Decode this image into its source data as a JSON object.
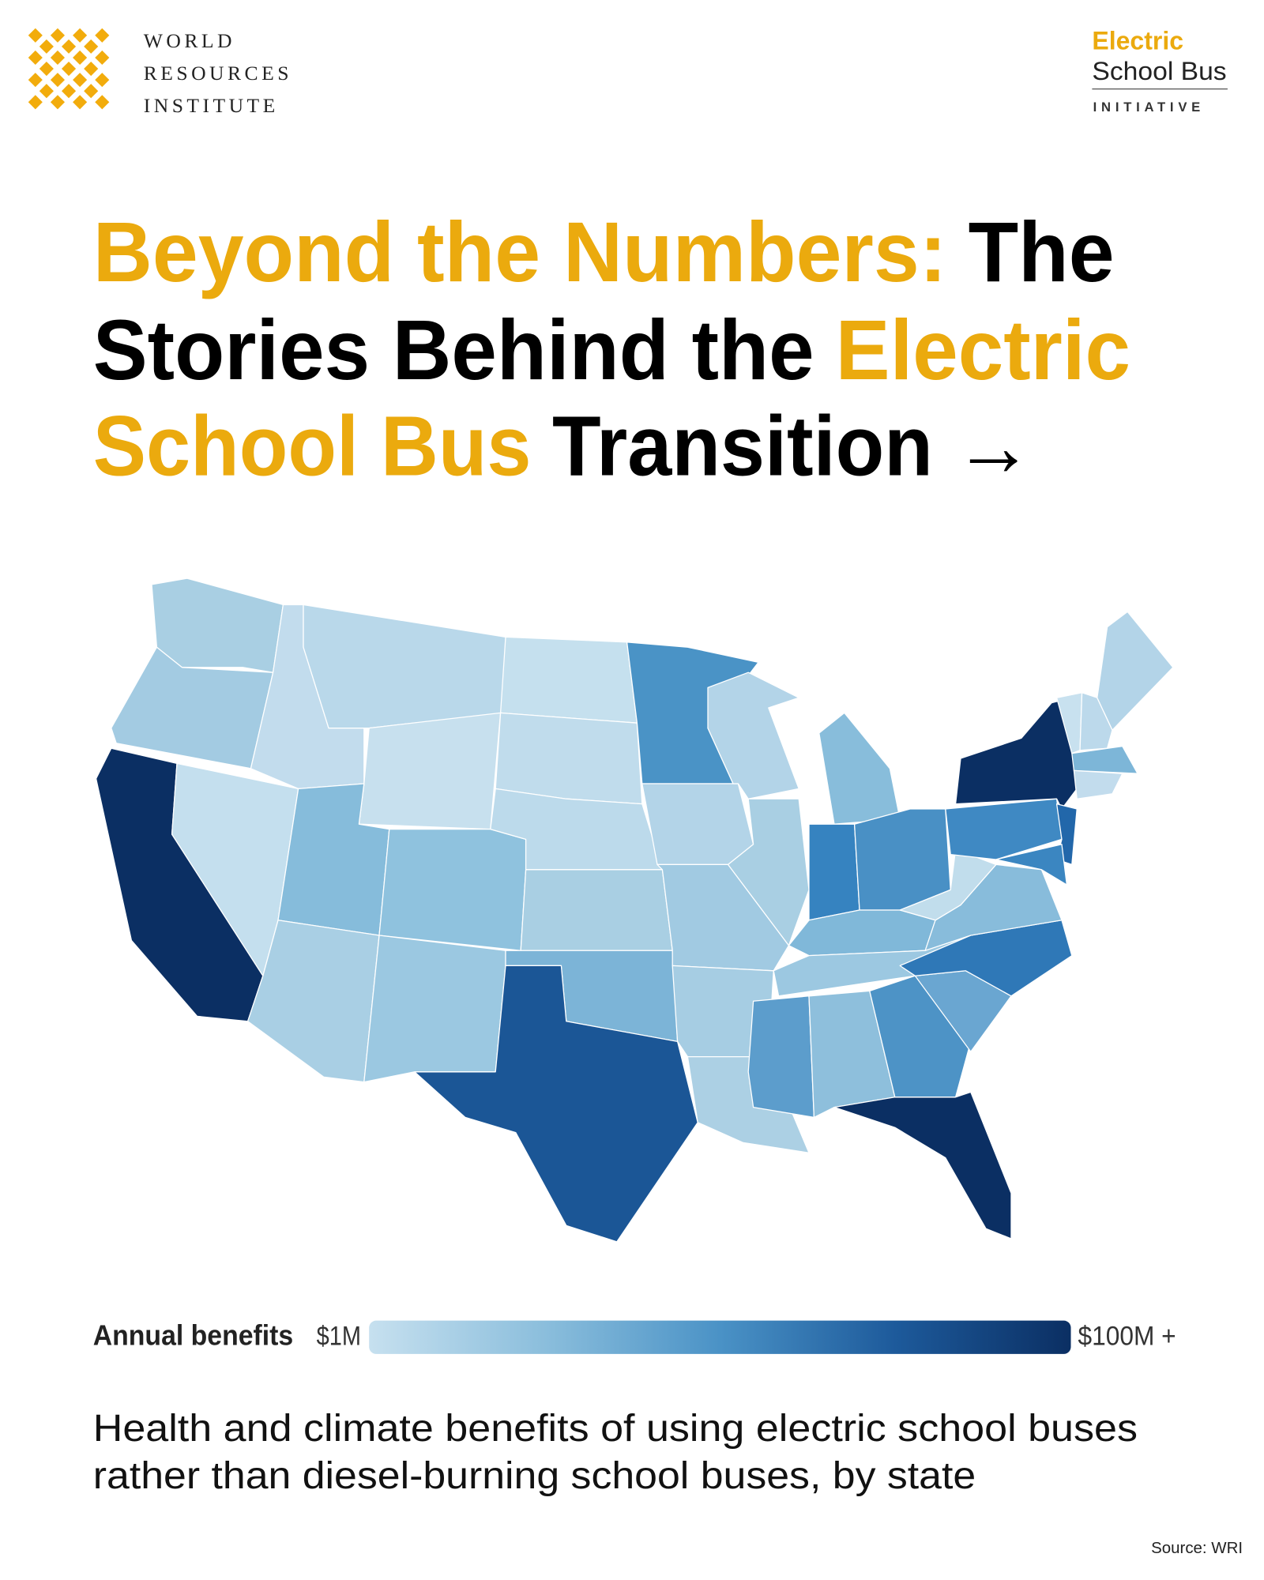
{
  "header": {
    "left_logo": {
      "lines": [
        "WORLD",
        "RESOURCES",
        "INSTITUTE"
      ],
      "color": "#f2ac0c"
    },
    "right_logo": {
      "line1": "Electric",
      "line2": "School Bus",
      "line3": "INITIATIVE",
      "accent": "#ebaa0e"
    }
  },
  "title": {
    "lines": [
      [
        {
          "text": "Beyond the Numbers:",
          "color": "#ebaa0e"
        },
        {
          "text": "The",
          "color": "#000000"
        }
      ],
      [
        {
          "text": "Stories Behind the",
          "color": "#000000"
        },
        {
          "text": "Electric",
          "color": "#ebaa0e"
        }
      ],
      [
        {
          "text": "School Bus",
          "color": "#ebaa0e"
        },
        {
          "text": "Transition",
          "color": "#000000"
        },
        {
          "text": "→",
          "color": "#000000"
        }
      ]
    ]
  },
  "legend": {
    "label": "Annual benefits",
    "min_label": "$1M",
    "max_label": "$100M +",
    "colors": [
      "#c6e0ef",
      "#8bbedc",
      "#4a92c6",
      "#1d5a9b",
      "#0b2f63"
    ]
  },
  "caption": {
    "lines": [
      "Health and climate benefits of using electric school buses",
      "rather than diesel-burning school buses, by state"
    ]
  },
  "source": "Source: WRI"
}
